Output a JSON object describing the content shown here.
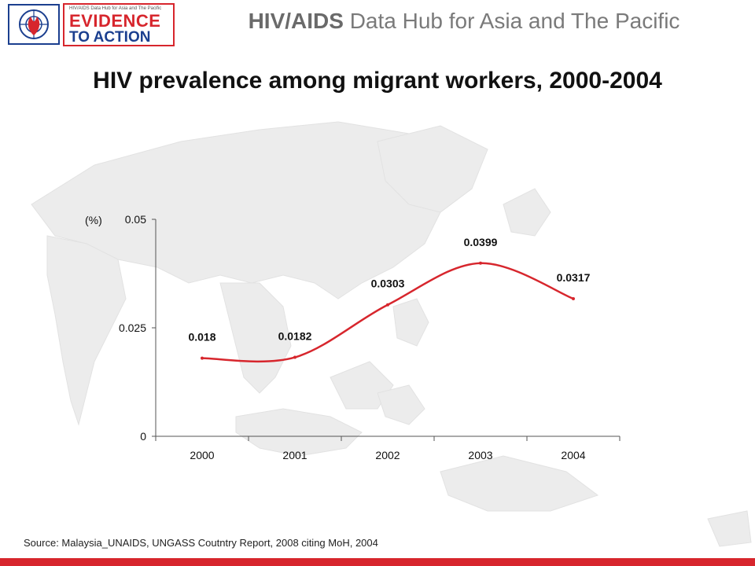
{
  "header": {
    "logo_tagline": "HIV/AIDS Data Hub for Asia and The Pacific",
    "logo_line1": "EVIDENCE",
    "logo_line2": "TO ACTION",
    "hub_title_bold": "HIV/AIDS",
    "hub_title_rest": " Data Hub for Asia and The Pacific"
  },
  "page_title": "HIV prevalence among migrant workers, 2000-2004",
  "source": "Source: Malaysia_UNAIDS, UNGASS Coutntry Report, 2008 citing MoH, 2004",
  "colors": {
    "accent": "#d7262d",
    "brand_blue": "#1b3f8f",
    "series_line": "#d7262d"
  },
  "chart_data": {
    "type": "line",
    "title": "HIV prevalence among migrant workers, 2000-2004",
    "categories": [
      "2000",
      "2001",
      "2002",
      "2003",
      "2004"
    ],
    "values": [
      0.018,
      0.0182,
      0.0303,
      0.0399,
      0.0317
    ],
    "data_labels": [
      "0.018",
      "0.0182",
      "0.0303",
      "0.0399",
      "0.0317"
    ],
    "y_unit": "(%)",
    "ylim": [
      0,
      0.05
    ],
    "y_ticks": [
      0,
      0.025,
      0.05
    ],
    "y_tick_labels": [
      "0",
      "0.025",
      "0.05"
    ],
    "smooth": true,
    "grid": false,
    "legend": "none"
  }
}
